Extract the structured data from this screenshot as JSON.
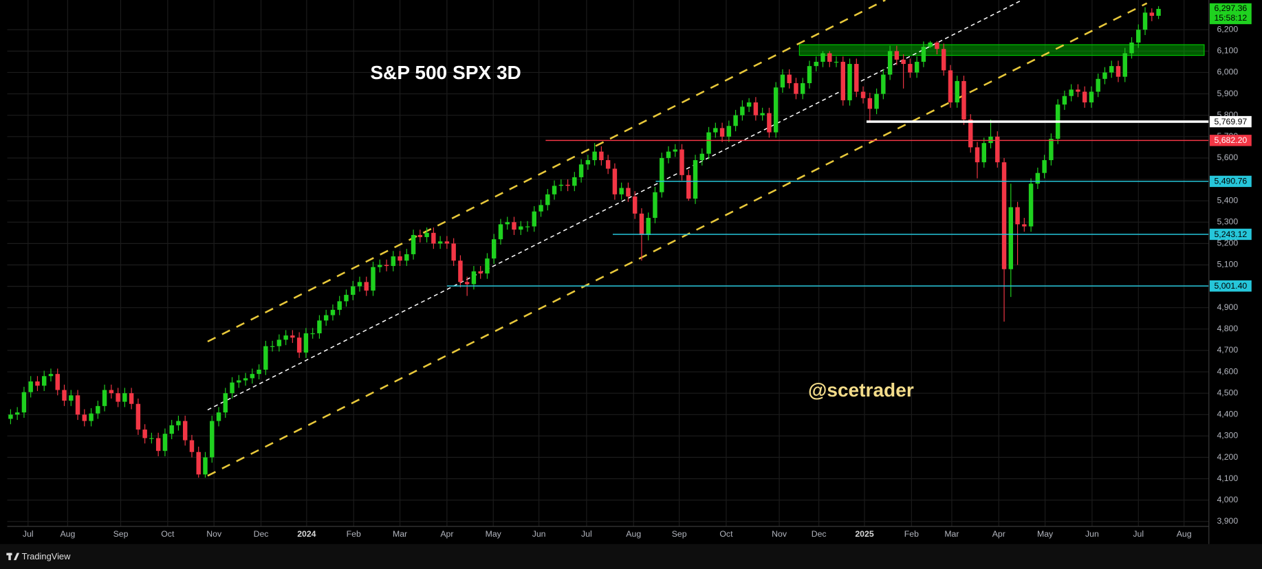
{
  "chart_data": {
    "type": "candlestick",
    "title": "S&P 500 SPX 3D",
    "watermark": "@scetrader",
    "brand": "TradingView",
    "up_color": "#1fd11f",
    "down_color": "#f23645",
    "grid": true,
    "open": [
      4380,
      4400,
      4410,
      4505,
      4555,
      4535,
      4580,
      4590,
      4515,
      4465,
      4490,
      4400,
      4370,
      4405,
      4440,
      4515,
      4500,
      4460,
      4500,
      4450,
      4330,
      4290,
      4290,
      4230,
      4310,
      4350,
      4370,
      4280,
      4225,
      4120,
      4200,
      4370,
      4410,
      4500,
      4550,
      4560,
      4570,
      4590,
      4610,
      4720,
      4720,
      4750,
      4770,
      4760,
      4690,
      4780,
      4780,
      4840,
      4865,
      4890,
      4930,
      4960,
      5000,
      5020,
      4980,
      5090,
      5100,
      5095,
      5140,
      5120,
      5150,
      5240,
      5230,
      5250,
      5200,
      5210,
      5200,
      5120,
      5020,
      5010,
      5070,
      5060,
      5130,
      5220,
      5290,
      5300,
      5265,
      5280,
      5280,
      5350,
      5380,
      5430,
      5470,
      5475,
      5470,
      5510,
      5570,
      5590,
      5630,
      5590,
      5550,
      5430,
      5460,
      5420,
      5340,
      5240,
      5320,
      5440,
      5600,
      5630,
      5640,
      5520,
      5410,
      5590,
      5620,
      5720,
      5740,
      5700,
      5750,
      5800,
      5840,
      5860,
      5800,
      5810,
      5720,
      5930,
      5990,
      5950,
      5900,
      5950,
      6030,
      6050,
      6090,
      6050,
      6050,
      5870,
      6040,
      5910,
      5880,
      5830,
      5900,
      5990,
      6100,
      6060,
      6040,
      6000,
      6050,
      6120,
      6140,
      6110,
      6010,
      5860,
      5960,
      5780,
      5650,
      5580,
      5670,
      5700,
      5580,
      5080,
      5370,
      5290,
      5280,
      5480,
      5530,
      5590,
      5690,
      5850,
      5890,
      5920,
      5910,
      5860,
      5910,
      5970,
      6000,
      6030,
      5980,
      6090,
      6140,
      6200,
      6280,
      6265
    ],
    "high": [
      4425,
      4435,
      4530,
      4580,
      4580,
      4605,
      4615,
      4615,
      4540,
      4515,
      4515,
      4425,
      4430,
      4465,
      4540,
      4540,
      4525,
      4525,
      4525,
      4475,
      4355,
      4315,
      4315,
      4335,
      4375,
      4395,
      4395,
      4305,
      4250,
      4225,
      4395,
      4435,
      4525,
      4575,
      4585,
      4595,
      4615,
      4635,
      4745,
      4745,
      4775,
      4795,
      4795,
      4785,
      4805,
      4805,
      4865,
      4890,
      4915,
      4955,
      4985,
      5025,
      5045,
      5045,
      5115,
      5125,
      5125,
      5165,
      5165,
      5175,
      5265,
      5265,
      5275,
      5275,
      5235,
      5235,
      5225,
      5145,
      5045,
      5095,
      5095,
      5155,
      5245,
      5315,
      5325,
      5325,
      5305,
      5305,
      5375,
      5405,
      5455,
      5495,
      5500,
      5500,
      5535,
      5595,
      5615,
      5670,
      5655,
      5615,
      5575,
      5485,
      5485,
      5445,
      5365,
      5345,
      5465,
      5625,
      5655,
      5665,
      5665,
      5545,
      5615,
      5645,
      5745,
      5765,
      5765,
      5775,
      5825,
      5870,
      5880,
      5885,
      5835,
      5835,
      5955,
      6015,
      6015,
      5975,
      5975,
      6055,
      6075,
      6100,
      6100,
      6075,
      6075,
      6065,
      6065,
      5935,
      5905,
      5925,
      6015,
      6125,
      6125,
      6085,
      6065,
      6075,
      6145,
      6147,
      6147,
      6135,
      6035,
      5985,
      5985,
      5805,
      5675,
      5695,
      5780,
      5725,
      5600,
      5480,
      5395,
      5320,
      5505,
      5555,
      5615,
      5715,
      5875,
      5915,
      5945,
      5945,
      5935,
      5935,
      5995,
      6025,
      6055,
      6055,
      6115,
      6165,
      6225,
      6305,
      6300,
      6310
    ],
    "low": [
      4355,
      4375,
      4385,
      4480,
      4510,
      4510,
      4555,
      4490,
      4440,
      4440,
      4375,
      4345,
      4345,
      4380,
      4415,
      4475,
      4435,
      4435,
      4425,
      4305,
      4265,
      4265,
      4205,
      4205,
      4285,
      4325,
      4255,
      4200,
      4105,
      4105,
      4175,
      4345,
      4385,
      4475,
      4525,
      4535,
      4545,
      4565,
      4585,
      4695,
      4695,
      4725,
      4735,
      4665,
      4665,
      4755,
      4755,
      4815,
      4840,
      4865,
      4905,
      4935,
      4975,
      4955,
      4955,
      5065,
      5070,
      5070,
      5095,
      5095,
      5125,
      5205,
      5205,
      5175,
      5175,
      5175,
      5095,
      4995,
      4955,
      4985,
      5035,
      5035,
      5105,
      5195,
      5265,
      5240,
      5240,
      5255,
      5255,
      5325,
      5355,
      5405,
      5445,
      5445,
      5445,
      5485,
      5545,
      5565,
      5565,
      5525,
      5405,
      5405,
      5395,
      5315,
      5120,
      5215,
      5295,
      5415,
      5575,
      5605,
      5495,
      5400,
      5385,
      5565,
      5595,
      5695,
      5675,
      5675,
      5725,
      5775,
      5815,
      5775,
      5775,
      5695,
      5695,
      5905,
      5925,
      5875,
      5875,
      5925,
      6005,
      6025,
      6025,
      6025,
      5845,
      5845,
      5885,
      5855,
      5775,
      5805,
      5875,
      5965,
      6035,
      5925,
      5975,
      5975,
      6025,
      6115,
      6085,
      5985,
      5835,
      5835,
      5755,
      5625,
      5505,
      5555,
      5645,
      5555,
      4835,
      4950,
      5100,
      5255,
      5255,
      5455,
      5505,
      5565,
      5665,
      5825,
      5865,
      5885,
      5835,
      5835,
      5885,
      5945,
      5975,
      5955,
      5955,
      6065,
      6115,
      6175,
      6240,
      6250
    ],
    "close": [
      4400,
      4410,
      4505,
      4555,
      4535,
      4580,
      4590,
      4515,
      4465,
      4490,
      4400,
      4370,
      4405,
      4440,
      4515,
      4500,
      4460,
      4500,
      4450,
      4330,
      4290,
      4290,
      4230,
      4310,
      4350,
      4370,
      4280,
      4225,
      4120,
      4200,
      4370,
      4410,
      4500,
      4550,
      4560,
      4570,
      4590,
      4610,
      4720,
      4720,
      4750,
      4770,
      4760,
      4690,
      4780,
      4780,
      4840,
      4865,
      4890,
      4930,
      4960,
      5000,
      5020,
      4980,
      5090,
      5100,
      5095,
      5140,
      5120,
      5150,
      5240,
      5230,
      5250,
      5200,
      5210,
      5200,
      5120,
      5020,
      5010,
      5070,
      5060,
      5130,
      5220,
      5290,
      5300,
      5265,
      5280,
      5280,
      5350,
      5380,
      5430,
      5470,
      5475,
      5470,
      5510,
      5570,
      5590,
      5630,
      5590,
      5550,
      5430,
      5460,
      5420,
      5340,
      5240,
      5320,
      5440,
      5600,
      5630,
      5640,
      5520,
      5410,
      5590,
      5620,
      5720,
      5740,
      5700,
      5750,
      5800,
      5840,
      5860,
      5800,
      5810,
      5720,
      5930,
      5990,
      5950,
      5900,
      5950,
      6030,
      6050,
      6090,
      6050,
      6050,
      5870,
      6040,
      5910,
      5880,
      5830,
      5900,
      5990,
      6100,
      6060,
      6040,
      6000,
      6050,
      6120,
      6140,
      6110,
      6010,
      5860,
      5960,
      5780,
      5650,
      5580,
      5670,
      5700,
      5580,
      5080,
      5370,
      5290,
      5280,
      5480,
      5530,
      5590,
      5690,
      5850,
      5890,
      5920,
      5910,
      5860,
      5910,
      5970,
      6000,
      6030,
      5980,
      6090,
      6140,
      6200,
      6280,
      6265,
      6297.36
    ],
    "xlim": [
      -0.5,
      178.5
    ],
    "xticks": [
      {
        "value": 2.6,
        "label": "Jul"
      },
      {
        "value": 8.5,
        "label": "Aug"
      },
      {
        "value": 16.4,
        "label": "Sep"
      },
      {
        "value": 23.4,
        "label": "Oct"
      },
      {
        "value": 30.3,
        "label": "Nov"
      },
      {
        "value": 37.3,
        "label": "Dec"
      },
      {
        "value": 44.1,
        "label": "2024"
      },
      {
        "value": 51.1,
        "label": "Feb"
      },
      {
        "value": 58,
        "label": "Mar"
      },
      {
        "value": 65,
        "label": "Apr"
      },
      {
        "value": 71.9,
        "label": "May"
      },
      {
        "value": 78.7,
        "label": "Jun"
      },
      {
        "value": 85.8,
        "label": "Jul"
      },
      {
        "value": 92.8,
        "label": "Aug"
      },
      {
        "value": 99.6,
        "label": "Sep"
      },
      {
        "value": 106.6,
        "label": "Oct"
      },
      {
        "value": 114.5,
        "label": "Nov"
      },
      {
        "value": 120.4,
        "label": "Dec"
      },
      {
        "value": 127.2,
        "label": "2025"
      },
      {
        "value": 134.2,
        "label": "Feb"
      },
      {
        "value": 140.2,
        "label": "Mar"
      },
      {
        "value": 147.2,
        "label": "Apr"
      },
      {
        "value": 154.1,
        "label": "May"
      },
      {
        "value": 161.1,
        "label": "Jun"
      },
      {
        "value": 168,
        "label": "Jul"
      },
      {
        "value": 174.8,
        "label": "Aug"
      }
    ],
    "ylim": [
      3877,
      6339
    ],
    "yticks": [
      {
        "value": 3900,
        "label": "3,900"
      },
      {
        "value": 4000,
        "label": "4,000"
      },
      {
        "value": 4100,
        "label": "4,100"
      },
      {
        "value": 4200,
        "label": "4,200"
      },
      {
        "value": 4300,
        "label": "4,300"
      },
      {
        "value": 4400,
        "label": "4,400"
      },
      {
        "value": 4500,
        "label": "4,500"
      },
      {
        "value": 4600,
        "label": "4,600"
      },
      {
        "value": 4700,
        "label": "4,700"
      },
      {
        "value": 4800,
        "label": "4,800"
      },
      {
        "value": 4900,
        "label": "4,900"
      },
      {
        "value": 5000,
        "label": "5,000"
      },
      {
        "value": 5100,
        "label": "5,100"
      },
      {
        "value": 5200,
        "label": "5,200"
      },
      {
        "value": 5300,
        "label": "5,300"
      },
      {
        "value": 5400,
        "label": "5,400"
      },
      {
        "value": 5500,
        "label": "5,500"
      },
      {
        "value": 5600,
        "label": "5,600"
      },
      {
        "value": 5700,
        "label": "5,700"
      },
      {
        "value": 5800,
        "label": "5,800"
      },
      {
        "value": 5900,
        "label": "5,900"
      },
      {
        "value": 6000,
        "label": "6,000"
      },
      {
        "value": 6100,
        "label": "6,100"
      },
      {
        "value": 6200,
        "label": "6,200"
      }
    ],
    "levels": [
      {
        "value": 5769.97,
        "label": "5,769.97",
        "color": "#ffffff",
        "x0": 127.5
      },
      {
        "value": 5682.2,
        "label": "5,682.20",
        "color": "#f23645",
        "x0": 79.7
      },
      {
        "value": 5490.76,
        "label": "5,490.76",
        "color": "#26c6da",
        "x0": 96.1
      },
      {
        "value": 5243.12,
        "label": "5,243.12",
        "color": "#26c6da",
        "x0": 89.7
      },
      {
        "value": 5001.4,
        "label": "5,001.40",
        "color": "#26c6da",
        "x0": 65
      }
    ],
    "zone": {
      "ylim": [
        6080,
        6130
      ],
      "xlim": [
        117.5,
        177.8
      ],
      "color": "#00c800"
    },
    "last_price_label": "6,297.36",
    "countdown": "15:58:12"
  }
}
